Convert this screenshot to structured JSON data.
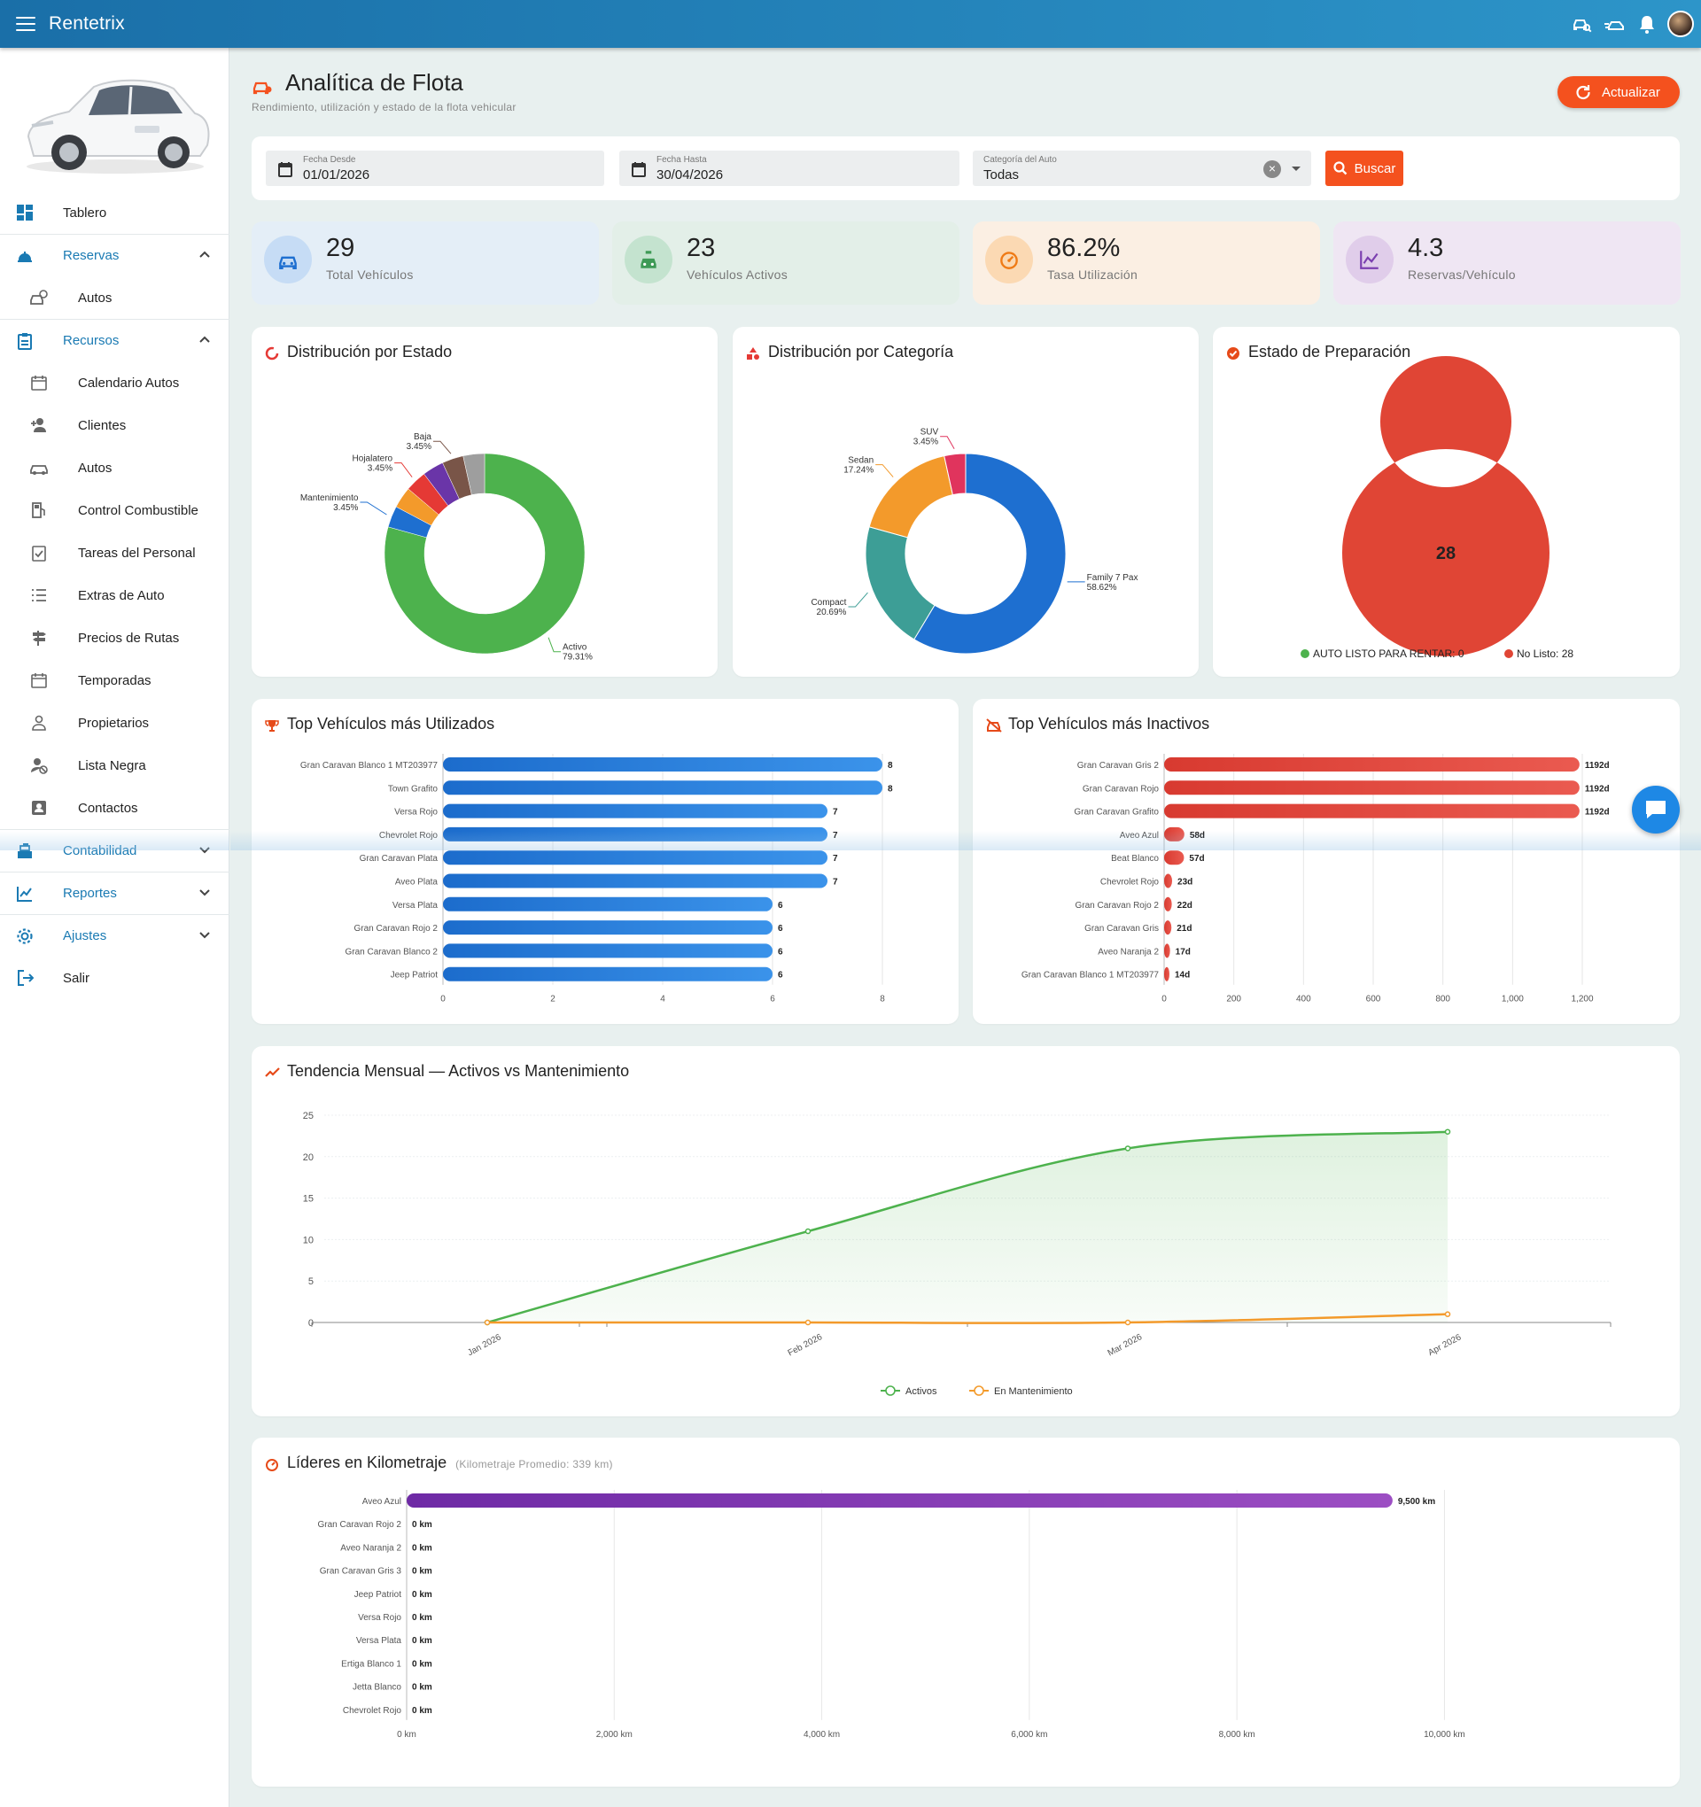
{
  "app": {
    "title": "Rentetrix"
  },
  "sidebar": {
    "items": [
      {
        "label": "Tablero",
        "type": "top",
        "icon": "dashboard-icon"
      },
      {
        "label": "Reservas",
        "type": "section",
        "icon": "bell-desk-icon",
        "chevron": "up"
      },
      {
        "label": "Autos",
        "type": "sub",
        "icon": "car-clock-icon"
      },
      {
        "label": "Recursos",
        "type": "section",
        "icon": "clipboard-icon",
        "chevron": "up"
      },
      {
        "label": "Calendario Autos",
        "type": "sub",
        "icon": "calendar-icon"
      },
      {
        "label": "Clientes",
        "type": "sub",
        "icon": "person-add-icon"
      },
      {
        "label": "Autos",
        "type": "sub",
        "icon": "car-icon"
      },
      {
        "label": "Control Combustible",
        "type": "sub",
        "icon": "fuel-icon"
      },
      {
        "label": "Tareas del Personal",
        "type": "sub",
        "icon": "task-icon"
      },
      {
        "label": "Extras de Auto",
        "type": "sub",
        "icon": "list-icon"
      },
      {
        "label": "Precios de Rutas",
        "type": "sub",
        "icon": "signpost-icon"
      },
      {
        "label": "Temporadas",
        "type": "sub",
        "icon": "calendar-icon"
      },
      {
        "label": "Propietarios",
        "type": "sub",
        "icon": "owner-icon"
      },
      {
        "label": "Lista Negra",
        "type": "sub",
        "icon": "person-block-icon"
      },
      {
        "label": "Contactos",
        "type": "sub",
        "icon": "contacts-icon"
      },
      {
        "label": "Contabilidad",
        "type": "section",
        "icon": "cash-register-icon",
        "chevron": "down"
      },
      {
        "label": "Reportes",
        "type": "section",
        "icon": "chart-line-icon",
        "chevron": "down"
      },
      {
        "label": "Ajustes",
        "type": "section",
        "icon": "gear-icon",
        "chevron": "down"
      },
      {
        "label": "Salir",
        "type": "top",
        "icon": "logout-icon"
      }
    ]
  },
  "page": {
    "title": "Analítica de Flota",
    "subtitle": "Rendimiento, utilización y estado de la flota vehicular",
    "refresh_label": "Actualizar"
  },
  "filters": {
    "date_from": {
      "label": "Fecha Desde",
      "value": "01/01/2026"
    },
    "date_to": {
      "label": "Fecha Hasta",
      "value": "30/04/2026"
    },
    "category": {
      "label": "Categoría del Auto",
      "value": "Todas"
    },
    "search_label": "Buscar"
  },
  "kpis": [
    {
      "value": "29",
      "label": "Total Vehículos",
      "icon": "car-icon",
      "bg": "#e4eef7",
      "circle": "#c6dcf5",
      "color": "#1e6fd0"
    },
    {
      "value": "23",
      "label": "Vehículos Activos",
      "icon": "taxi-icon",
      "bg": "#e3efe8",
      "circle": "#c4e3cf",
      "color": "#3e9a56"
    },
    {
      "value": "86.2%",
      "label": "Tasa Utilización",
      "icon": "speedometer-icon",
      "bg": "#fbefe3",
      "circle": "#fbd9b3",
      "color": "#ef7b16"
    },
    {
      "value": "4.3",
      "label": "Reservas/Vehículo",
      "icon": "chart-line-icon",
      "bg": "#efe6f3",
      "circle": "#e0cdea",
      "color": "#7b3fb0"
    }
  ],
  "charts": {
    "estado": {
      "title": "Distribución por Estado"
    },
    "categoria": {
      "title": "Distribución por Categoría"
    },
    "preparacion": {
      "title": "Estado de Preparación"
    },
    "top_usados": {
      "title": "Top Vehículos más Utilizados"
    },
    "top_inactivos": {
      "title": "Top Vehículos más Inactivos"
    },
    "tendencia": {
      "title": "Tendencia Mensual — Activos vs Mantenimiento"
    },
    "kilometraje": {
      "title": "Líderes en Kilometraje",
      "note": "(Kilometraje Promedio: 339 km)"
    }
  },
  "chart_data": [
    {
      "id": "estado",
      "type": "pie",
      "title": "Distribución por Estado",
      "slices": [
        {
          "label": "Activo",
          "value": 79.31,
          "display": "79.31%",
          "color": "#4db24d"
        },
        {
          "label": "Mantenimiento",
          "value": 3.45,
          "display": "3.45%",
          "color": "#1e6fd0"
        },
        {
          "label": "",
          "value": 3.45,
          "color": "#f39a2b"
        },
        {
          "label": "Hojalatero",
          "value": 3.45,
          "display": "3.45%",
          "color": "#e53935"
        },
        {
          "label": "",
          "value": 3.45,
          "color": "#6a35a8"
        },
        {
          "label": "Baja",
          "value": 3.45,
          "display": "3.45%",
          "color": "#795548"
        },
        {
          "label": "",
          "value": 3.45,
          "color": "#9e9e9e"
        }
      ]
    },
    {
      "id": "categoria",
      "type": "pie",
      "title": "Distribución por Categoría",
      "slices": [
        {
          "label": "Family 7 Pax",
          "value": 58.62,
          "display": "58.62%",
          "color": "#1e6fd0"
        },
        {
          "label": "Compact",
          "value": 20.69,
          "display": "20.69%",
          "color": "#3d9e96"
        },
        {
          "label": "Sedan",
          "value": 17.24,
          "display": "17.24%",
          "color": "#f39a2b"
        },
        {
          "label": "SUV",
          "value": 3.45,
          "display": "3.45%",
          "color": "#e0345d"
        }
      ]
    },
    {
      "id": "preparacion",
      "type": "pie",
      "title": "Estado de Preparación",
      "center_label": "28",
      "slices": [
        {
          "label": "AUTO LISTO PARA RENTAR: 0",
          "value": 0,
          "color": "#4db24d"
        },
        {
          "label": "No Listo: 28",
          "value": 28,
          "color": "#e04535"
        }
      ]
    },
    {
      "id": "top_usados",
      "type": "bar",
      "orientation": "horizontal",
      "title": "Top Vehículos más Utilizados",
      "xlim": [
        0,
        8
      ],
      "ticks": [
        "0",
        "2",
        "4",
        "6",
        "8"
      ],
      "categories": [
        "Gran Caravan Blanco 1 MT203977",
        "Town Grafito",
        "Versa Rojo",
        "Chevrolet Rojo",
        "Gran Caravan Plata",
        "Aveo Plata",
        "Versa Plata",
        "Gran Caravan Rojo 2",
        "Gran Caravan Blanco 2",
        "Jeep Patriot"
      ],
      "values": [
        8,
        8,
        7,
        7,
        7,
        7,
        6,
        6,
        6,
        6
      ],
      "labels": [
        "8",
        "8",
        "7",
        "7",
        "7",
        "7",
        "6",
        "6",
        "6",
        "6"
      ],
      "color": "#1e78d8"
    },
    {
      "id": "top_inactivos",
      "type": "bar",
      "orientation": "horizontal",
      "title": "Top Vehículos más Inactivos",
      "xlim": [
        0,
        1250
      ],
      "ticks": [
        "0",
        "200",
        "400",
        "600",
        "800",
        "1,000",
        "1,200"
      ],
      "categories": [
        "Gran Caravan Gris 2",
        "Gran Caravan Rojo",
        "Gran Caravan Grafito",
        "Aveo Azul",
        "Beat Blanco",
        "Chevrolet Rojo",
        "Gran Caravan Rojo 2",
        "Gran Caravan Gris",
        "Aveo Naranja 2",
        "Gran Caravan Blanco 1 MT203977"
      ],
      "values": [
        1192,
        1192,
        1192,
        58,
        57,
        23,
        22,
        21,
        17,
        14
      ],
      "labels": [
        "1192d",
        "1192d",
        "1192d",
        "58d",
        "57d",
        "23d",
        "22d",
        "21d",
        "17d",
        "14d"
      ],
      "color": "#e0443a"
    },
    {
      "id": "tendencia",
      "type": "line",
      "title": "Tendencia Mensual — Activos vs Mantenimiento",
      "x": [
        "Jan 2026",
        "Feb 2026",
        "Mar 2026",
        "Apr 2026"
      ],
      "ylim": [
        0,
        25
      ],
      "yticks": [
        "0",
        "5",
        "10",
        "15",
        "20",
        "25"
      ],
      "series": [
        {
          "name": "Activos",
          "values": [
            0,
            11,
            21,
            23
          ],
          "color": "#4db24d",
          "area": true
        },
        {
          "name": "En Mantenimiento",
          "values": [
            0,
            0,
            0,
            1
          ],
          "color": "#f39a2b"
        }
      ],
      "legend": "bottom"
    },
    {
      "id": "kilometraje",
      "type": "bar",
      "orientation": "horizontal",
      "title": "Líderes en Kilometraje",
      "xlim": [
        0,
        10500
      ],
      "ticks": [
        "0 km",
        "2,000 km",
        "4,000 km",
        "6,000 km",
        "8,000 km",
        "10,000 km"
      ],
      "categories": [
        "Aveo Azul",
        "Gran Caravan Rojo 2",
        "Aveo Naranja 2",
        "Gran Caravan Gris 3",
        "Jeep Patriot",
        "Versa Rojo",
        "Versa Plata",
        "Ertiga Blanco 1",
        "Jetta Blanco",
        "Chevrolet Rojo"
      ],
      "values": [
        9500,
        0,
        0,
        0,
        0,
        0,
        0,
        0,
        0,
        0
      ],
      "labels": [
        "9,500 km",
        "0 km",
        "0 km",
        "0 km",
        "0 km",
        "0 km",
        "0 km",
        "0 km",
        "0 km",
        "0 km"
      ],
      "color": "#7b35ad"
    }
  ]
}
